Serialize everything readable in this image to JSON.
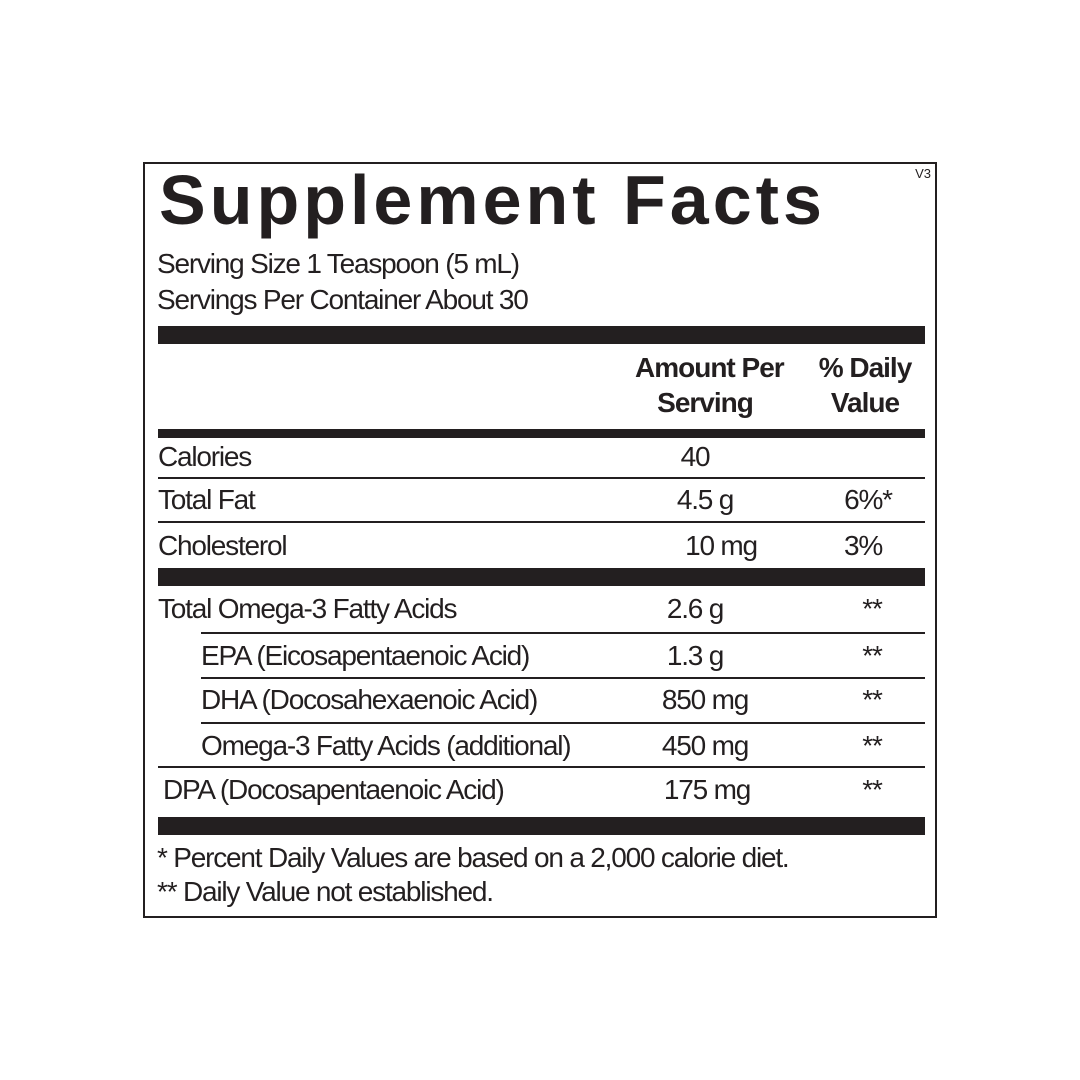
{
  "label": {
    "title": "Supplement Facts",
    "version": "V3",
    "serving_size": "Serving Size 1 Teaspoon (5 mL)",
    "servings_per_container": "Servings Per Container About 30",
    "headers": {
      "amount_line1": "Amount Per",
      "amount_line2": "Serving",
      "dv_line1": "% Daily",
      "dv_line2": "Value"
    },
    "rows": [
      {
        "name": "Calories",
        "amount": "40",
        "dv": ""
      },
      {
        "name": "Total Fat",
        "amount": "4.5 g",
        "dv": "6%*"
      },
      {
        "name": "Cholesterol",
        "amount": "10 mg",
        "dv": "3%"
      },
      {
        "name": "Total Omega-3 Fatty Acids",
        "amount": "2.6 g",
        "dv": "**"
      },
      {
        "name": "EPA (Eicosapentaenoic Acid)",
        "amount": "1.3 g",
        "dv": "**"
      },
      {
        "name": "DHA (Docosahexaenoic Acid)",
        "amount": "850 mg",
        "dv": "**"
      },
      {
        "name": "Omega-3 Fatty Acids (additional)",
        "amount": "450 mg",
        "dv": "**"
      },
      {
        "name": "DPA (Docosapentaenoic Acid)",
        "amount": "175 mg",
        "dv": "**"
      }
    ],
    "footnotes": [
      "* Percent Daily Values are based on a 2,000 calorie diet.",
      "** Daily Value not established."
    ]
  }
}
